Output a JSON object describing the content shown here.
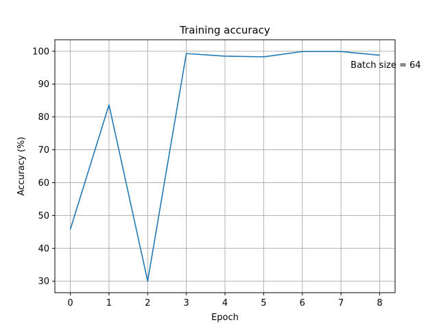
{
  "chart_data": {
    "type": "line",
    "title": "Training accuracy",
    "xlabel": "Epoch",
    "ylabel": "Accuracy (%)",
    "x": [
      0,
      1,
      2,
      3,
      4,
      5,
      6,
      7,
      8
    ],
    "series": [
      {
        "values": [
          45.8,
          83.7,
          30.0,
          99.3,
          98.5,
          98.3,
          99.9,
          99.9,
          98.8
        ]
      }
    ],
    "xlim": [
      -0.4,
      8.4
    ],
    "ylim": [
      26.5,
      103.5
    ],
    "xticks": [
      0,
      1,
      2,
      3,
      4,
      5,
      6,
      7,
      8
    ],
    "yticks": [
      30,
      40,
      50,
      60,
      70,
      80,
      90,
      100
    ],
    "grid": true,
    "annotation": {
      "text": "Batch size = 64",
      "x": 7.25,
      "y": 96
    },
    "colors": {
      "line": "#1f77b4",
      "grid": "#b0b0b0"
    }
  }
}
